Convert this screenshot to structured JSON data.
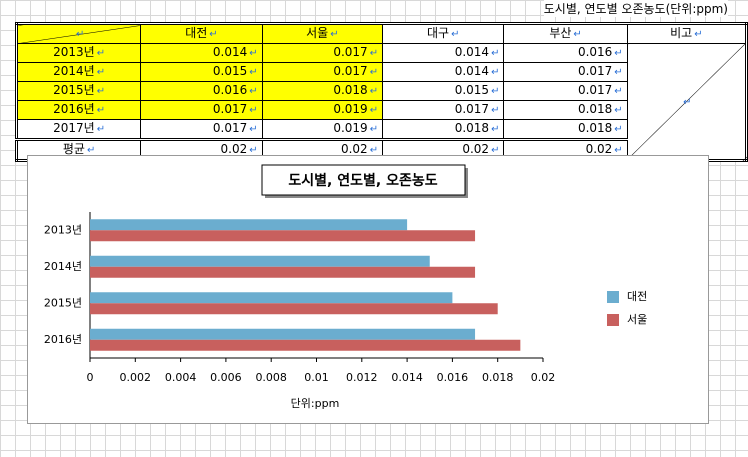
{
  "caption": "도시별, 연도별 오존농도(단위:ppm)",
  "table": {
    "header": [
      "대전",
      "서울",
      "대구",
      "부산",
      "비고"
    ],
    "rows": [
      [
        "2013년",
        "0.014",
        "0.017",
        "0.014",
        "0.016"
      ],
      [
        "2014년",
        "0.015",
        "0.017",
        "0.014",
        "0.017"
      ],
      [
        "2015년",
        "0.016",
        "0.018",
        "0.015",
        "0.017"
      ],
      [
        "2016년",
        "0.017",
        "0.019",
        "0.017",
        "0.018"
      ],
      [
        "2017년",
        "0.017",
        "0.019",
        "0.018",
        "0.018"
      ],
      [
        "평균",
        "0.02",
        "0.02",
        "0.02",
        "0.02"
      ]
    ]
  },
  "chart_data": {
    "type": "hbar",
    "title": "도시별, 연도별, 오존농도",
    "x_label": "단위:ppm",
    "categories": [
      "2013년",
      "2014년",
      "2015년",
      "2016년"
    ],
    "series": [
      {
        "name": "대전",
        "color": "#6badcf",
        "values": [
          0.014,
          0.015,
          0.016,
          0.017
        ]
      },
      {
        "name": "서울",
        "color": "#c8605e",
        "values": [
          0.017,
          0.017,
          0.018,
          0.019
        ]
      }
    ],
    "xlim": [
      0,
      0.02
    ],
    "xticks": [
      0,
      0.002,
      0.004,
      0.006,
      0.008,
      0.01,
      0.012,
      0.014,
      0.016,
      0.018,
      0.02
    ],
    "legend": "right"
  }
}
